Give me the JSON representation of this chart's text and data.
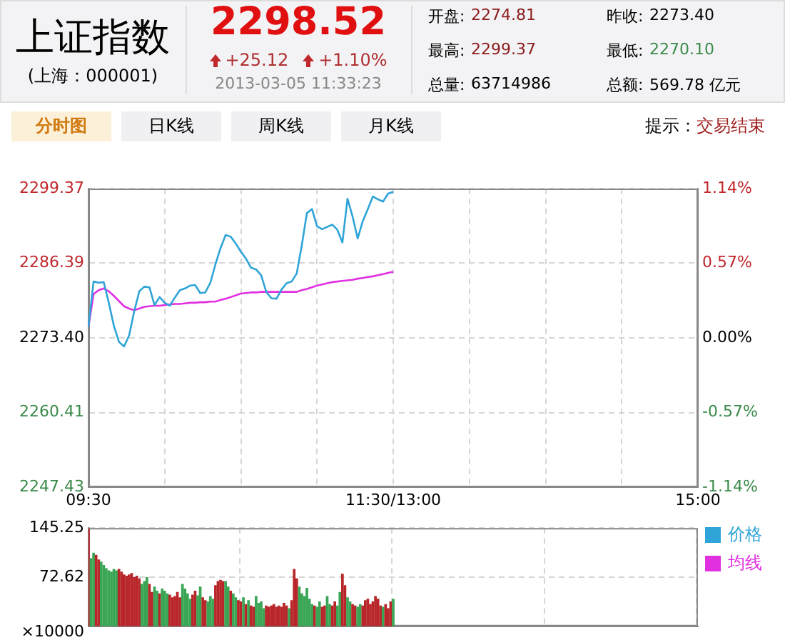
{
  "chart_data": [
    {
      "type": "other",
      "title": "上证指数",
      "annotations": [
        "(上海：000001)",
        "2298.52",
        "+25.12",
        "+1.10%",
        "2013-03-05 11:33:23",
        "开盘:",
        "2274.81",
        "昨收:",
        "2273.40",
        "最高:",
        "2299.37",
        "最低:",
        "2270.10",
        "总量:",
        "63714986",
        "总额:",
        "569.78 亿元",
        "分时图",
        "日K线",
        "周K线",
        "月K线",
        "提示：",
        "交易结束"
      ]
    },
    {
      "type": "line",
      "categories": [
        "09:30",
        null,
        null,
        null,
        null,
        null,
        null,
        null,
        null,
        null,
        null,
        null,
        null,
        null,
        null,
        null,
        null,
        null,
        null,
        null,
        null,
        null,
        null,
        null,
        null,
        null,
        null,
        null,
        null,
        null,
        null,
        null,
        null,
        null,
        null,
        null,
        null,
        null,
        null,
        null,
        null,
        null,
        null,
        null,
        null,
        null,
        null,
        null,
        null,
        null,
        null,
        null,
        null,
        null,
        null,
        null,
        null,
        null,
        null,
        null,
        "11:30/13:00",
        null,
        null,
        null,
        null,
        null,
        null,
        null,
        null,
        null,
        null,
        null,
        null,
        null,
        null,
        null,
        null,
        null,
        null,
        null,
        null,
        null,
        null,
        null,
        null,
        null,
        null,
        null,
        null,
        null,
        null,
        null,
        null,
        null,
        null,
        null,
        null,
        null,
        null,
        null,
        null,
        null,
        null,
        null,
        null,
        null,
        null,
        null,
        null,
        null,
        null,
        null,
        null,
        null,
        null,
        null,
        null,
        null,
        null,
        null,
        "15:00"
      ],
      "ylim": [
        2247.43,
        2299.37
      ],
      "yticks": [
        2247.43,
        2260.41,
        {
          "value": 2273.4,
          "label": "2273.40"
        },
        2286.39,
        2299.37
      ],
      "y2lim": [
        -1.14,
        1.14
      ],
      "y2ticks": [
        {
          "value": -1.14,
          "label": "-1.14%"
        },
        {
          "value": -0.57,
          "label": "-0.57%"
        },
        {
          "value": 0,
          "label": "0.00%"
        },
        {
          "value": 0.57,
          "label": "0.57%"
        },
        {
          "value": 1.14,
          "label": "1.14%"
        }
      ],
      "grid": true,
      "legend": "bottom right",
      "series": [
        {
          "name": "价格",
          "color": "#2fa4d8",
          "values": [
            2275.3,
            2283.2,
            2283.0,
            2283.1,
            2279.5,
            2275.5,
            2272.7,
            2271.9,
            2273.8,
            2278.0,
            2281.5,
            2282.3,
            2282.2,
            2279.1,
            2280.5,
            2279.5,
            2279.0,
            2280.4,
            2281.7,
            2282.0,
            2282.5,
            2282.6,
            2281.2,
            2281.3,
            2283.0,
            2286.2,
            2289.0,
            2291.3,
            2291.0,
            2289.8,
            2288.4,
            2287.2,
            2285.6,
            2285.3,
            2284.3,
            2281.4,
            2280.3,
            2280.2,
            2281.8,
            2282.9,
            2283.2,
            2284.6,
            2289.5,
            2295.1,
            2295.8,
            2292.8,
            2292.3,
            2292.7,
            2293.1,
            2292.2,
            2290.0,
            2297.6,
            2294.5,
            2290.7,
            2293.7,
            2295.8,
            2298.0,
            2297.5,
            2297.1,
            2298.5,
            2298.8,
            null,
            null,
            null,
            null,
            null,
            null,
            null,
            null,
            null,
            null,
            null,
            null,
            null,
            null,
            null,
            null,
            null,
            null,
            null,
            null,
            null,
            null,
            null,
            null,
            null,
            null,
            null,
            null,
            null,
            null,
            null,
            null,
            null,
            null,
            null,
            null,
            null,
            null,
            null,
            null,
            null,
            null,
            null,
            null,
            null,
            null,
            null,
            null,
            null,
            null,
            null,
            null,
            null,
            null,
            null,
            null,
            null,
            null,
            null,
            null
          ]
        },
        {
          "name": "均线",
          "color": "#e030e0",
          "values": [
            2275.3,
            2281.0,
            2281.7,
            2282.0,
            2281.5,
            2280.7,
            2279.8,
            2278.9,
            2278.5,
            2278.2,
            2278.5,
            2278.8,
            2278.9,
            2279.0,
            2279.0,
            2279.1,
            2279.2,
            2279.3,
            2279.3,
            2279.4,
            2279.5,
            2279.5,
            2279.6,
            2279.6,
            2279.7,
            2279.7,
            2280.0,
            2280.2,
            2280.5,
            2280.8,
            2281.1,
            2281.2,
            2281.3,
            2281.3,
            2281.4,
            2281.4,
            2281.4,
            2281.4,
            2281.4,
            2281.4,
            2281.4,
            2281.4,
            2281.7,
            2281.9,
            2282.2,
            2282.5,
            2282.7,
            2282.9,
            2283.1,
            2283.2,
            2283.3,
            2283.4,
            2283.5,
            2283.7,
            2283.8,
            2284.0,
            2284.1,
            2284.3,
            2284.5,
            2284.7,
            2284.9,
            null,
            null,
            null,
            null,
            null,
            null,
            null,
            null,
            null,
            null,
            null,
            null,
            null,
            null,
            null,
            null,
            null,
            null,
            null,
            null,
            null,
            null,
            null,
            null,
            null,
            null,
            null,
            null,
            null,
            null,
            null,
            null,
            null,
            null,
            null,
            null,
            null,
            null,
            null,
            null,
            null,
            null,
            null,
            null,
            null,
            null,
            null,
            null,
            null,
            null,
            null,
            null,
            null,
            null,
            null,
            null,
            null,
            null,
            null,
            null
          ]
        }
      ]
    },
    {
      "type": "bar",
      "ylabel": "×10000",
      "ylim": [
        0,
        145.25
      ],
      "yticks": [
        72.62,
        145.25
      ],
      "grid": true,
      "tick_labels": "y",
      "categories": [
        null,
        null,
        null,
        null,
        null,
        null,
        null,
        null,
        null,
        null,
        null,
        null,
        null,
        null,
        null,
        null,
        null,
        null,
        null,
        null,
        null,
        null,
        null,
        null,
        null,
        null,
        null,
        null,
        null,
        null,
        null,
        null,
        null,
        null,
        null,
        null,
        null,
        null,
        null,
        null,
        null,
        null,
        null,
        null,
        null,
        null,
        null,
        null,
        null,
        null,
        null,
        null,
        null,
        null,
        null,
        null,
        null,
        null,
        null,
        null,
        null,
        null,
        null,
        null,
        null,
        null,
        null,
        null,
        null,
        null,
        null,
        null,
        null,
        null,
        null,
        null,
        null,
        null,
        null,
        null,
        null,
        null,
        null,
        null,
        null,
        null,
        null,
        null,
        null,
        null,
        null,
        null,
        null,
        null,
        null,
        null,
        null,
        null,
        null,
        null,
        null,
        null,
        null,
        null,
        null,
        null,
        null,
        null,
        null,
        null,
        null,
        null,
        null,
        null,
        null,
        null,
        null,
        null,
        null,
        null,
        null,
        null,
        null,
        null,
        null,
        null,
        null,
        null,
        null,
        null,
        null,
        null,
        null,
        null,
        null,
        null,
        null,
        null,
        null,
        null,
        null,
        null,
        null,
        null,
        null,
        null,
        null,
        null,
        null,
        null,
        null,
        null,
        null,
        null,
        null,
        null,
        null,
        null,
        null,
        null,
        null,
        null,
        null,
        null,
        null,
        null,
        null,
        null,
        null,
        null,
        null,
        null,
        null,
        null,
        null,
        null,
        null,
        null,
        null,
        null,
        null,
        null,
        null,
        null,
        null,
        null,
        null,
        null,
        null,
        null,
        null,
        null,
        null,
        null,
        null,
        null,
        null,
        null,
        null,
        null,
        null,
        null,
        null,
        null,
        null,
        null,
        null,
        null,
        null,
        null,
        null,
        null,
        null,
        null,
        null,
        null,
        null,
        null,
        null,
        null,
        null,
        null,
        null,
        null,
        null,
        null,
        null,
        null,
        null,
        null,
        null,
        null,
        null,
        null,
        null,
        null,
        null,
        null,
        null,
        null,
        null
      ],
      "values": [
        144,
        100,
        108,
        105,
        98,
        95,
        90,
        85,
        82,
        80,
        84,
        82,
        84,
        80,
        76,
        74,
        76,
        78,
        72,
        74,
        70,
        62,
        66,
        72,
        62,
        50,
        58,
        52,
        48,
        55,
        52,
        48,
        46,
        42,
        44,
        50,
        42,
        62,
        55,
        48,
        40,
        46,
        52,
        45,
        58,
        42,
        38,
        36,
        44,
        40,
        60,
        66,
        68,
        66,
        66,
        58,
        52,
        48,
        42,
        38,
        36,
        42,
        32,
        38,
        30,
        28,
        44,
        34,
        36,
        26,
        30,
        28,
        30,
        32,
        28,
        30,
        28,
        34,
        30,
        26,
        38,
        84,
        70,
        58,
        48,
        44,
        56,
        40,
        32,
        30,
        28,
        36,
        28,
        30,
        44,
        32,
        30,
        36,
        30,
        50,
        77,
        60,
        42,
        36,
        32,
        30,
        28,
        32,
        30,
        38,
        40,
        32,
        36,
        44,
        40,
        30,
        28,
        32,
        26,
        36,
        40,
        null,
        null,
        null,
        null,
        null,
        null,
        null,
        null,
        null,
        null,
        null,
        null,
        null,
        null,
        null,
        null,
        null,
        null,
        null,
        null,
        null,
        null,
        null,
        null,
        null,
        null,
        null,
        null,
        null,
        null,
        null,
        null,
        null,
        null,
        null,
        null,
        null,
        null,
        null,
        null,
        null,
        null,
        null,
        null,
        null,
        null,
        null,
        null,
        null,
        null,
        null,
        null,
        null,
        null,
        null,
        null,
        null,
        null,
        null,
        null,
        null,
        null,
        null,
        null,
        null,
        null,
        null,
        null,
        null,
        null,
        null,
        null,
        null,
        null,
        null,
        null,
        null,
        null,
        null,
        null,
        null,
        null,
        null,
        null,
        null,
        null,
        null,
        null,
        null,
        null,
        null,
        null,
        null,
        null,
        null,
        null,
        null,
        null,
        null,
        null,
        null,
        null,
        null,
        null,
        null,
        null,
        null,
        null,
        null,
        null,
        null,
        null,
        null,
        null,
        null,
        null,
        null,
        null,
        null,
        null
      ],
      "colors": [
        "#b8262a",
        "#3aa655",
        "#3aa655",
        "#b8262a",
        "#b8262a",
        "#3aa655",
        "#3aa655",
        "#3aa655",
        "#3aa655",
        "#3aa655",
        "#3aa655",
        "#3aa655",
        "#b8262a",
        "#b8262a",
        "#b8262a",
        "#b8262a",
        "#b8262a",
        "#b8262a",
        "#b8262a",
        "#b8262a",
        "#b8262a",
        "#3aa655",
        "#3aa655",
        "#3aa655",
        "#b8262a",
        "#b8262a",
        "#3aa655",
        "#3aa655",
        "#b8262a",
        "#3aa655",
        "#3aa655",
        "#3aa655",
        "#b8262a",
        "#b8262a",
        "#b8262a",
        "#b8262a",
        "#b8262a",
        "#3aa655",
        "#3aa655",
        "#3aa655",
        "#3aa655",
        "#b8262a",
        "#b8262a",
        "#3aa655",
        "#3aa655",
        "#b8262a",
        "#b8262a",
        "#3aa655",
        "#3aa655",
        "#3aa655",
        "#b8262a",
        "#b8262a",
        "#b8262a",
        "#b8262a",
        "#3aa655",
        "#3aa655",
        "#b8262a",
        "#3aa655",
        "#3aa655",
        "#b8262a",
        "#b8262a",
        "#3aa655",
        "#b8262a",
        "#3aa655",
        "#b8262a",
        "#b8262a",
        "#3aa655",
        "#3aa655",
        "#3aa655",
        "#3aa655",
        "#b8262a",
        "#b8262a",
        "#b8262a",
        "#b8262a",
        "#b8262a",
        "#b8262a",
        "#b8262a",
        "#b8262a",
        "#b8262a",
        "#3aa655",
        "#b8262a",
        "#b8262a",
        "#b8262a",
        "#3aa655",
        "#3aa655",
        "#3aa655",
        "#3aa655",
        "#3aa655",
        "#3aa655",
        "#b8262a",
        "#3aa655",
        "#3aa655",
        "#b8262a",
        "#b8262a",
        "#3aa655",
        "#3aa655",
        "#b8262a",
        "#b8262a",
        "#3aa655",
        "#3aa655",
        "#b8262a",
        "#b8262a",
        "#3aa655",
        "#3aa655",
        "#b8262a",
        "#b8262a",
        "#3aa655",
        "#3aa655",
        "#b8262a",
        "#b8262a",
        "#b8262a",
        "#b8262a",
        "#b8262a",
        "#b8262a",
        "#b8262a",
        "#b8262a",
        "#3aa655",
        "#b8262a",
        "#b8262a",
        "#b8262a",
        "#3aa655",
        null,
        null,
        null,
        null,
        null,
        null,
        null,
        null,
        null,
        null,
        null,
        null,
        null,
        null,
        null,
        null,
        null,
        null,
        null,
        null,
        null,
        null,
        null,
        null,
        null,
        null,
        null,
        null,
        null,
        null,
        null,
        null,
        null,
        null,
        null,
        null,
        null,
        null,
        null,
        null,
        null,
        null,
        null,
        null,
        null,
        null,
        null,
        null,
        null,
        null,
        null,
        null,
        null,
        null,
        null,
        null,
        null,
        null,
        null,
        null,
        null,
        null,
        null,
        null,
        null,
        null,
        null,
        null,
        null,
        null,
        null,
        null,
        null,
        null,
        null,
        null,
        null,
        null,
        null,
        null,
        null,
        null,
        null,
        null,
        null,
        null,
        null,
        null,
        null,
        null,
        null,
        null,
        null,
        null,
        null,
        null,
        null,
        null,
        null,
        null,
        null,
        null,
        null,
        null,
        null,
        null,
        null,
        null,
        null,
        null,
        null,
        null,
        null,
        null,
        null,
        null,
        null,
        null,
        null,
        null
      ]
    }
  ]
}
